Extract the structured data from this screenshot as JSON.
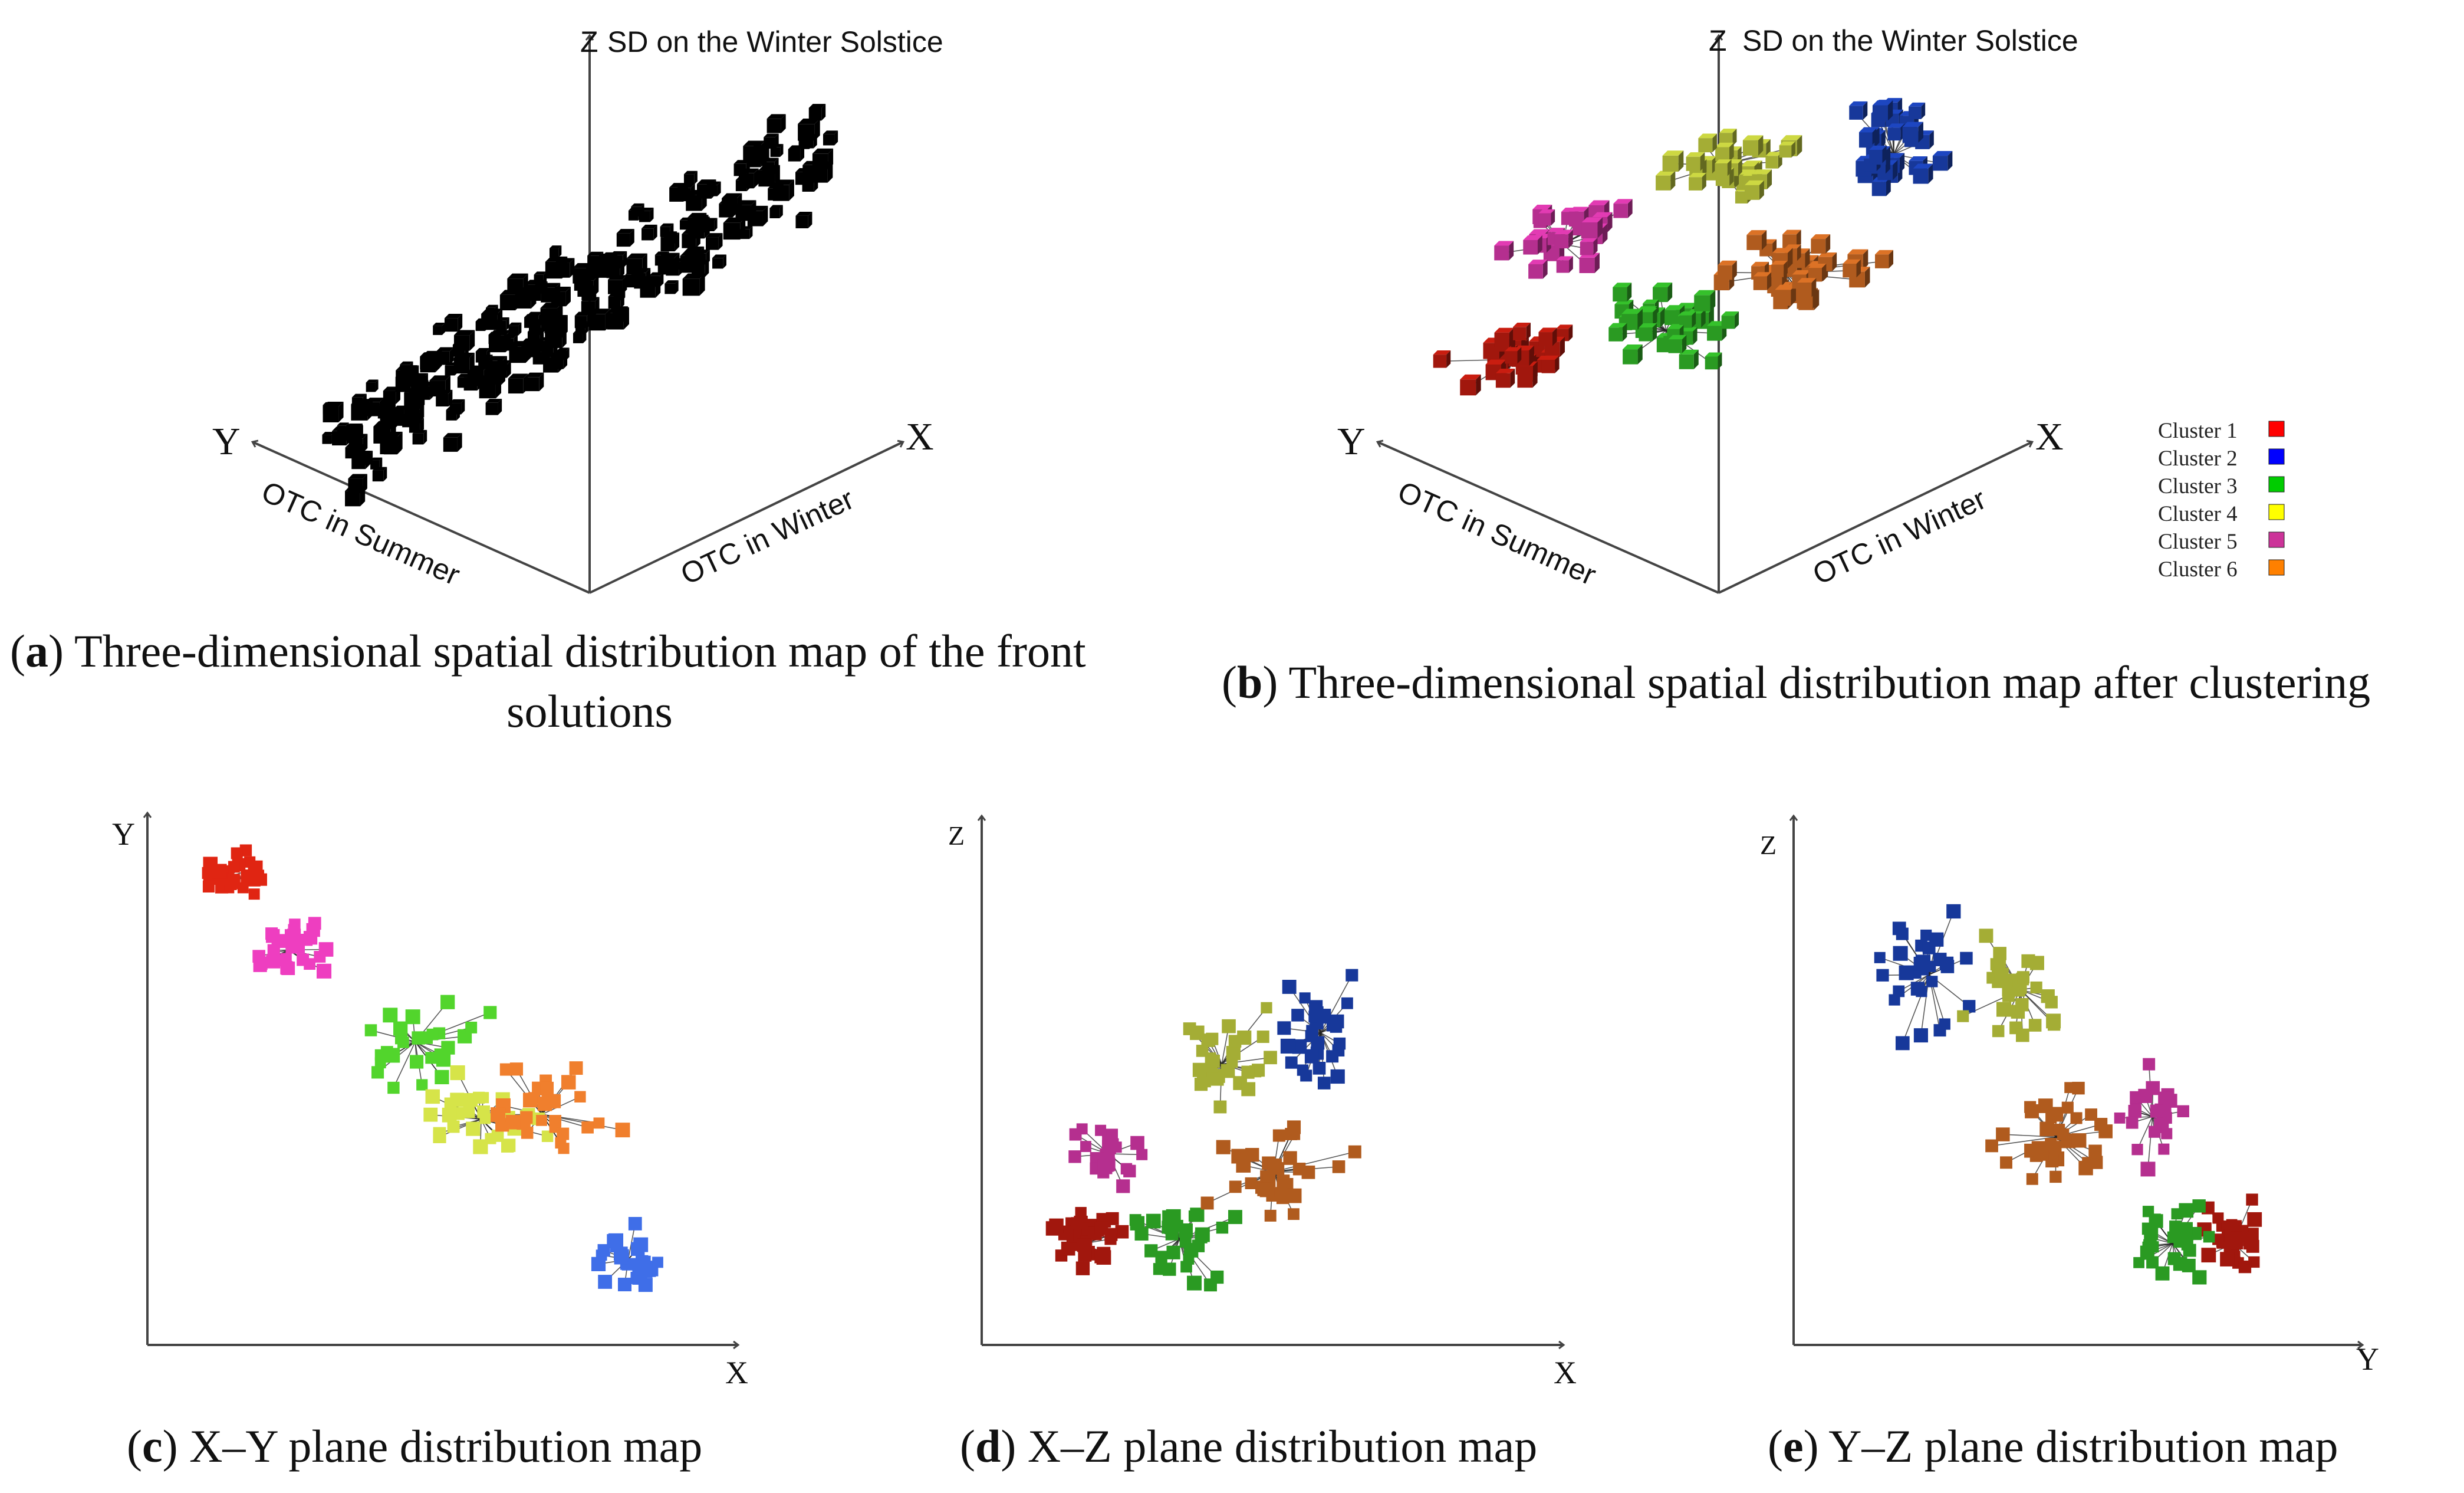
{
  "chart_data": [
    {
      "panel": "a",
      "type": "scatter",
      "projection": "3d",
      "caption_label": "a",
      "caption_text": ") Three-dimensional spatial distribution map of the front",
      "caption_text_line2": "solutions",
      "x_axis": {
        "letter": "X",
        "label": "OTC in Winter"
      },
      "y_axis": {
        "letter": "Y",
        "label": "OTC in Summer"
      },
      "z_axis": {
        "letter": "Z",
        "label": "SD on the Winter Solstice"
      },
      "marker_color": "#000000",
      "seed": 11,
      "count": 210
    },
    {
      "panel": "b",
      "type": "scatter",
      "projection": "3d",
      "caption_label": "b",
      "caption_text": ") Three-dimensional spatial distribution map after clustering",
      "x_axis": {
        "letter": "X",
        "label": "OTC in Winter"
      },
      "y_axis": {
        "letter": "Y",
        "label": "OTC in Summer"
      },
      "z_axis": {
        "letter": "Z",
        "label": "SD on the Winter Solstice"
      },
      "legend": [
        {
          "name": "Cluster 1",
          "color": "#ff0000"
        },
        {
          "name": "Cluster 2",
          "color": "#0000ff"
        },
        {
          "name": "Cluster 3",
          "color": "#00cc00"
        },
        {
          "name": "Cluster 4",
          "color": "#ffff00"
        },
        {
          "name": "Cluster 5",
          "color": "#cc3399"
        },
        {
          "name": "Cluster 6",
          "color": "#ff8000"
        }
      ],
      "clusters": [
        {
          "name": "Cluster 1",
          "color": "#a1170d",
          "center": [
            0.15,
            0.72
          ],
          "spread": [
            0.09,
            0.07
          ],
          "count": 34,
          "seed": 21
        },
        {
          "name": "Cluster 2",
          "color": "#17389a",
          "center": [
            0.85,
            0.15
          ],
          "spread": [
            0.08,
            0.1
          ],
          "count": 30,
          "seed": 22
        },
        {
          "name": "Cluster 3",
          "color": "#2a9a22",
          "center": [
            0.43,
            0.64
          ],
          "spread": [
            0.1,
            0.07
          ],
          "count": 33,
          "seed": 23
        },
        {
          "name": "Cluster 4",
          "color": "#a4ad35",
          "center": [
            0.53,
            0.18
          ],
          "spread": [
            0.1,
            0.08
          ],
          "count": 30,
          "seed": 24
        },
        {
          "name": "Cluster 5",
          "color": "#b52f8f",
          "center": [
            0.24,
            0.4
          ],
          "spread": [
            0.08,
            0.08
          ],
          "count": 24,
          "seed": 25
        },
        {
          "name": "Cluster 6",
          "color": "#b05b1e",
          "center": [
            0.65,
            0.48
          ],
          "spread": [
            0.12,
            0.08
          ],
          "count": 34,
          "seed": 26
        }
      ]
    },
    {
      "panel": "c",
      "type": "scatter",
      "caption_label": "c",
      "caption_text": ") X–Y plane distribution map",
      "xlabel": "X",
      "ylabel": "Y",
      "clusters": [
        {
          "name": "Cluster 1",
          "color": "#e02512",
          "center": [
            0.1,
            0.07
          ],
          "spread": [
            0.05,
            0.04
          ],
          "count": 30,
          "seed": 31
        },
        {
          "name": "Cluster 5",
          "color": "#ee3ec0",
          "center": [
            0.22,
            0.22
          ],
          "spread": [
            0.06,
            0.04
          ],
          "count": 30,
          "seed": 32
        },
        {
          "name": "Cluster 3",
          "color": "#52d52c",
          "center": [
            0.47,
            0.41
          ],
          "spread": [
            0.1,
            0.07
          ],
          "count": 28,
          "seed": 33
        },
        {
          "name": "Cluster 4",
          "color": "#d6e449",
          "center": [
            0.6,
            0.57
          ],
          "spread": [
            0.09,
            0.06
          ],
          "count": 30,
          "seed": 34
        },
        {
          "name": "Cluster 6",
          "color": "#f07f2d",
          "center": [
            0.72,
            0.56
          ],
          "spread": [
            0.1,
            0.09
          ],
          "count": 30,
          "seed": 35
        },
        {
          "name": "Cluster 2",
          "color": "#3f6ee8",
          "center": [
            0.89,
            0.86
          ],
          "spread": [
            0.05,
            0.05
          ],
          "count": 30,
          "seed": 36
        }
      ]
    },
    {
      "panel": "d",
      "type": "scatter",
      "caption_label": "d",
      "caption_text": ") X–Z plane distribution map",
      "xlabel": "X",
      "ylabel": "Z",
      "clusters": [
        {
          "name": "Cluster 1",
          "color": "#a1170d",
          "center": [
            0.15,
            0.8
          ],
          "spread": [
            0.07,
            0.07
          ],
          "count": 30,
          "seed": 41
        },
        {
          "name": "Cluster 2",
          "color": "#17389a",
          "center": [
            0.65,
            0.33
          ],
          "spread": [
            0.07,
            0.09
          ],
          "count": 30,
          "seed": 42
        },
        {
          "name": "Cluster 3",
          "color": "#2a9a22",
          "center": [
            0.35,
            0.79
          ],
          "spread": [
            0.09,
            0.07
          ],
          "count": 30,
          "seed": 43
        },
        {
          "name": "Cluster 4",
          "color": "#a4ad35",
          "center": [
            0.44,
            0.4
          ],
          "spread": [
            0.09,
            0.09
          ],
          "count": 30,
          "seed": 44
        },
        {
          "name": "Cluster 5",
          "color": "#b52f8f",
          "center": [
            0.2,
            0.6
          ],
          "spread": [
            0.06,
            0.07
          ],
          "count": 24,
          "seed": 45
        },
        {
          "name": "Cluster 6",
          "color": "#b05b1e",
          "center": [
            0.55,
            0.64
          ],
          "spread": [
            0.11,
            0.08
          ],
          "count": 34,
          "seed": 46
        }
      ]
    },
    {
      "panel": "e",
      "type": "scatter",
      "caption_label": "e",
      "caption_text": ") Y–Z plane distribution map",
      "xlabel": "Y",
      "ylabel": "Z",
      "clusters": [
        {
          "name": "Cluster 1",
          "color": "#a1170d",
          "center": [
            0.8,
            0.8
          ],
          "spread": [
            0.05,
            0.07
          ],
          "count": 30,
          "seed": 51
        },
        {
          "name": "Cluster 2",
          "color": "#17389a",
          "center": [
            0.2,
            0.27
          ],
          "spread": [
            0.07,
            0.11
          ],
          "count": 30,
          "seed": 52
        },
        {
          "name": "Cluster 3",
          "color": "#2a9a22",
          "center": [
            0.68,
            0.8
          ],
          "spread": [
            0.06,
            0.07
          ],
          "count": 30,
          "seed": 53
        },
        {
          "name": "Cluster 4",
          "color": "#a4ad35",
          "center": [
            0.38,
            0.3
          ],
          "spread": [
            0.08,
            0.09
          ],
          "count": 30,
          "seed": 54
        },
        {
          "name": "Cluster 5",
          "color": "#b52f8f",
          "center": [
            0.64,
            0.55
          ],
          "spread": [
            0.05,
            0.08
          ],
          "count": 24,
          "seed": 55
        },
        {
          "name": "Cluster 6",
          "color": "#b05b1e",
          "center": [
            0.45,
            0.59
          ],
          "spread": [
            0.1,
            0.08
          ],
          "count": 34,
          "seed": 56
        }
      ]
    }
  ]
}
